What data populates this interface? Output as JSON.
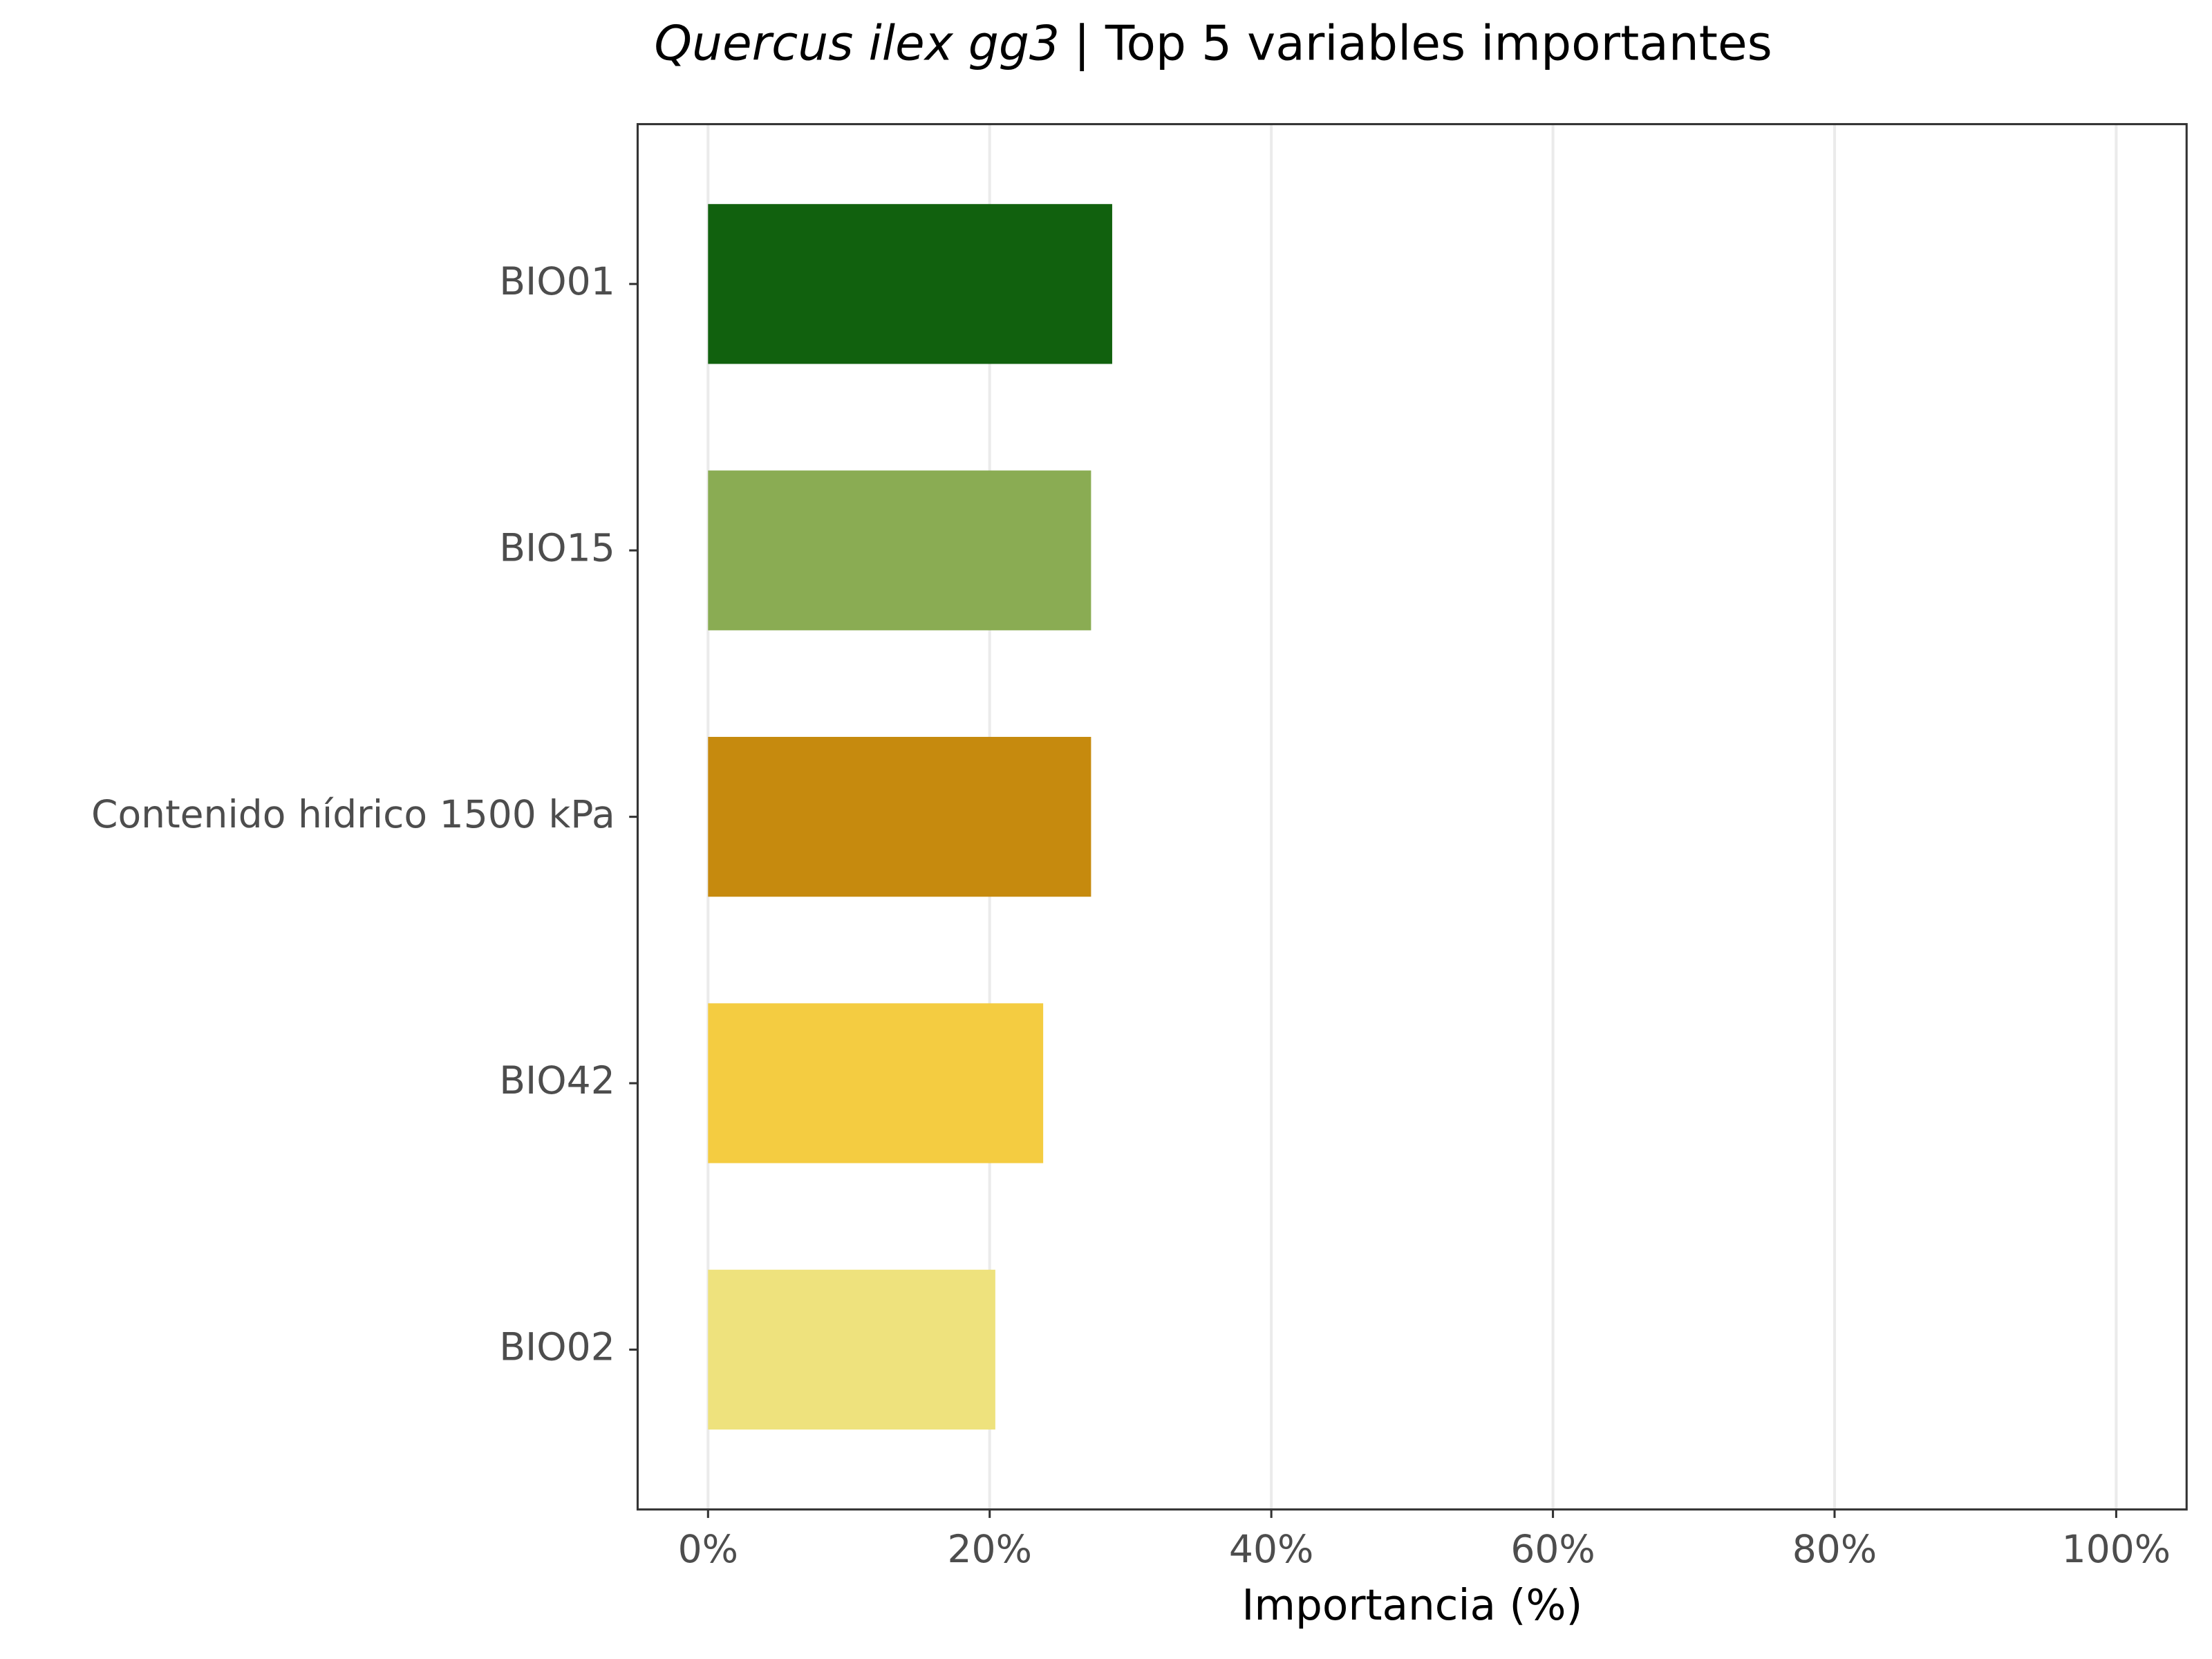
{
  "chart_data": {
    "type": "barh",
    "title": {
      "species": "Quercus ilex gg3",
      "text": "| Top 5 variables importantes"
    },
    "x_label": "Importancia (%)",
    "categories": [
      "BIO01",
      "BIO15",
      "Contenido hídrico 1500 kPa",
      "BIO42",
      "BIO02"
    ],
    "values": [
      28.7,
      27.2,
      27.2,
      23.8,
      20.4
    ],
    "colors": [
      "#11610e",
      "#8aac53",
      "#c68a0e",
      "#f4cc41",
      "#eee27d"
    ],
    "xlim": [
      -5,
      105
    ],
    "xticks": [
      {
        "value": 0,
        "label": "0%"
      },
      {
        "value": 20,
        "label": "20%"
      },
      {
        "value": 40,
        "label": "40%"
      },
      {
        "value": 60,
        "label": "60%"
      },
      {
        "value": 80,
        "label": "80%"
      },
      {
        "value": 100,
        "label": "100%"
      }
    ],
    "grid": true
  }
}
